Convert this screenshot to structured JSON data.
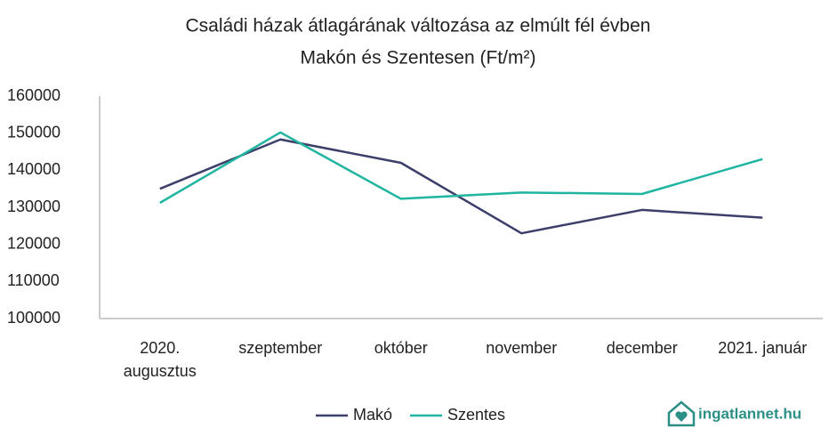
{
  "chart_data": {
    "type": "line",
    "title": [
      "Családi házak átlagárának változása az elmúlt fél évben",
      "Makón és Szentesen (Ft/m²)"
    ],
    "categories": [
      "2020. augusztus",
      "szeptember",
      "október",
      "november",
      "december",
      "2021. január"
    ],
    "series": [
      {
        "name": "Makó",
        "color": "#3d3f6b",
        "values": [
          135000,
          148300,
          142000,
          123000,
          129300,
          127200
        ]
      },
      {
        "name": "Szentes",
        "color": "#1fb5a0",
        "values": [
          131200,
          150200,
          132300,
          134000,
          133600,
          143000
        ]
      }
    ],
    "ylim": [
      100000,
      160000
    ],
    "yticks": [
      100000,
      110000,
      120000,
      130000,
      140000,
      150000,
      160000
    ],
    "legend": "bottom",
    "grid": false,
    "brand": "ingatlannet.hu"
  }
}
